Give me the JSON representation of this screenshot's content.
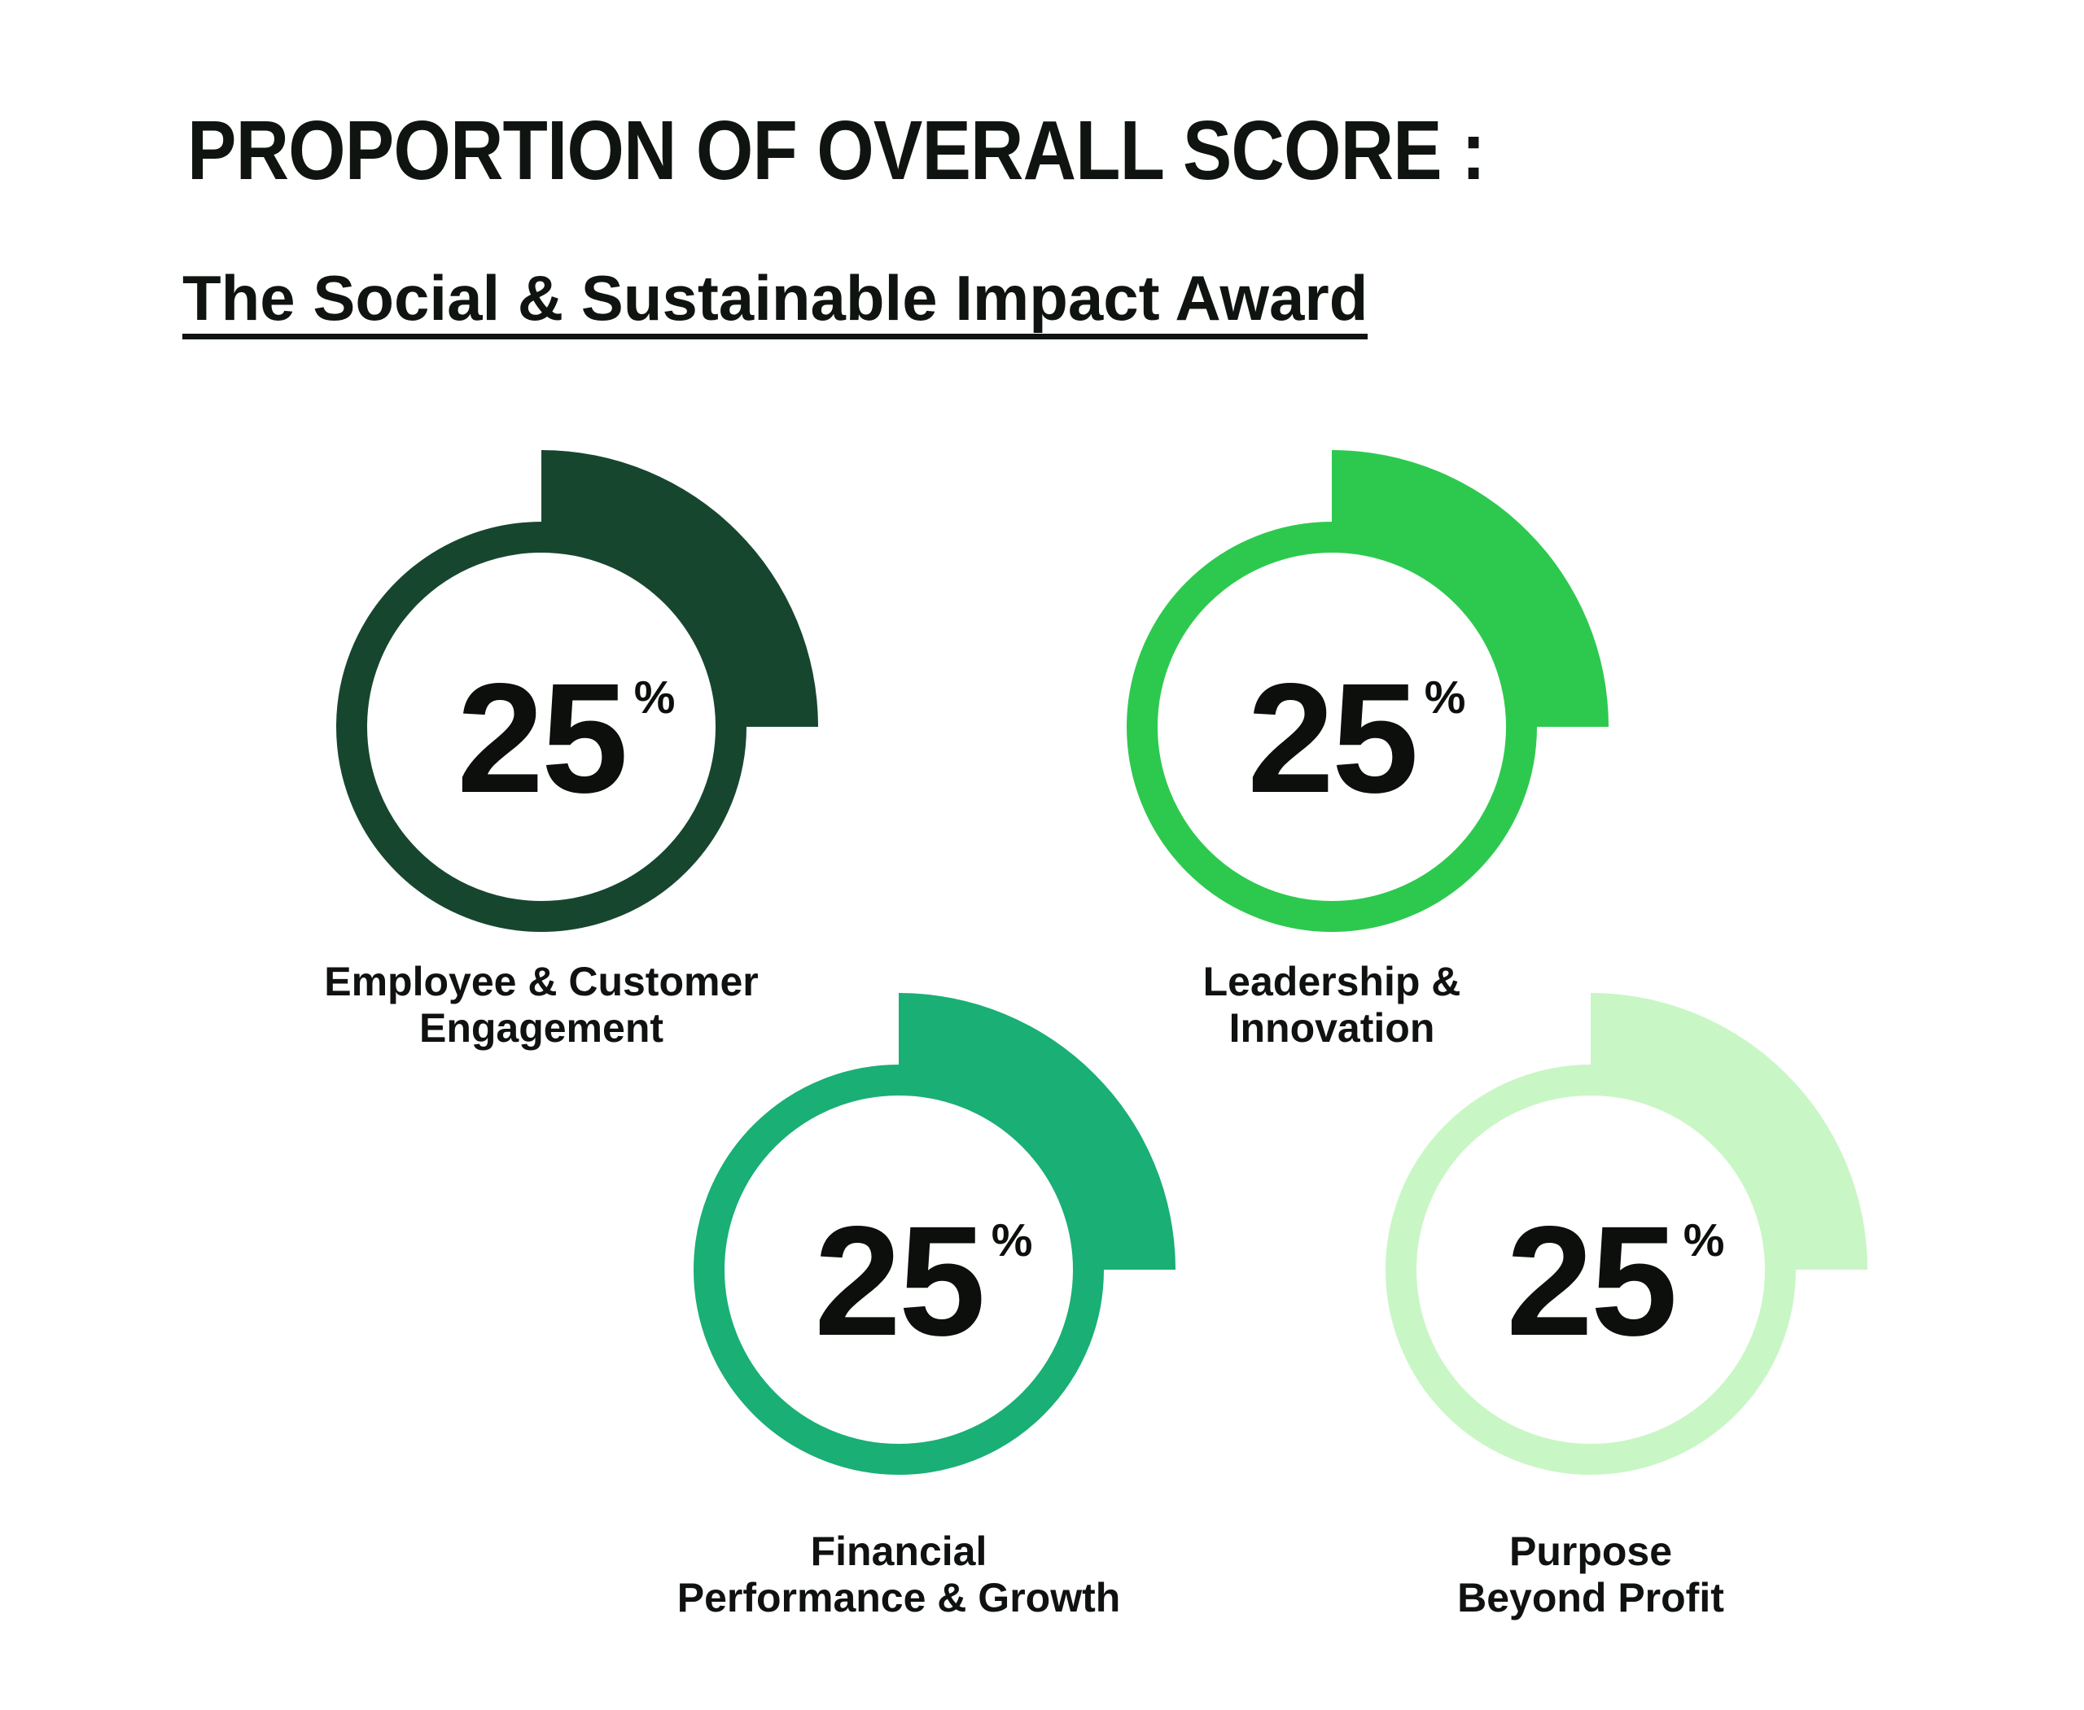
{
  "header": {
    "title": "PROPORTION OF OVERALL SCORE :",
    "subtitle": "The Social & Sustainable Impact Award"
  },
  "chart_data": {
    "type": "pie",
    "title": "PROPORTION OF OVERALL SCORE :",
    "subtitle": "The Social & Sustainable Impact Award",
    "unit": "%",
    "layout": "four separate quarter-arc gauge rings, each showing 25%, value centered in ring, label below each gauge",
    "legend_position": "below-each-gauge",
    "total": 100,
    "segments": [
      {
        "label": "Employee & Customer Engagement",
        "label_lines": [
          "Employee & Customer",
          "Engagement"
        ],
        "value": 25,
        "color": "#17462F"
      },
      {
        "label": "Leadership & Innovation",
        "label_lines": [
          "Leadership &",
          "Innovation"
        ],
        "value": 25,
        "color": "#2DC94E"
      },
      {
        "label": "Financial Performance & Growth",
        "label_lines": [
          "Financial",
          "Performance & Growth"
        ],
        "value": 25,
        "color": "#19AF75"
      },
      {
        "label": "Purpose Beyond Profit",
        "label_lines": [
          "Purpose",
          "Beyond Profit"
        ],
        "value": 25,
        "color": "#C9F6C5"
      }
    ]
  }
}
